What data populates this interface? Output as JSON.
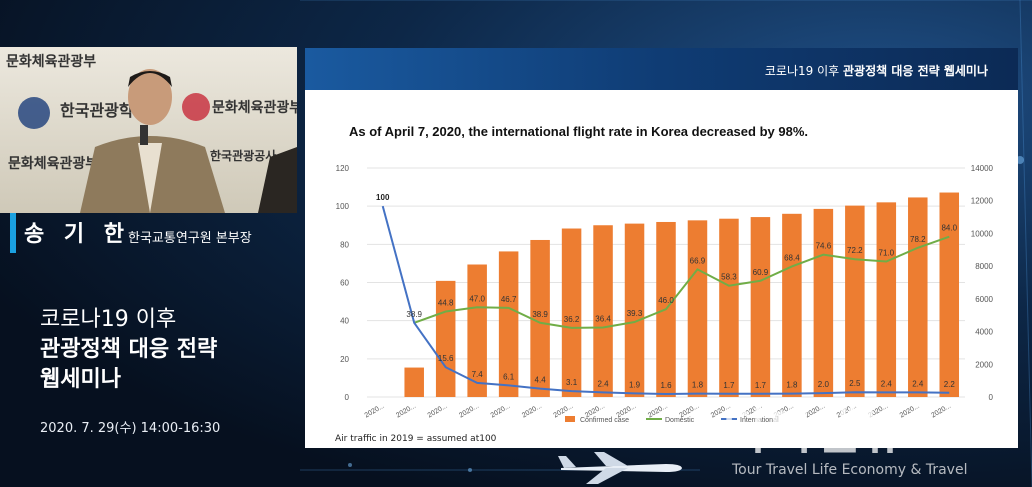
{
  "camera": {
    "banner_lines": [
      "문화체육관광부",
      "한국관광학회",
      "문화체육관광부",
      "문화체육관광부",
      "한국관광공사",
      "한국관광학회"
    ]
  },
  "speaker": {
    "name": "송 기 한",
    "org": "한국교통연구원 본부장"
  },
  "event": {
    "line1": "코로나19 이후",
    "line2": "관광정책 대응 전략",
    "line3": "웹세미나",
    "datetime": "2020. 7. 29(수) 14:00-16:30"
  },
  "slide": {
    "header_prefix": "코로나19 이후 ",
    "header_bold": "관광정책 대응 전략 웹세미나",
    "footnote": "Air traffic in 2019 = assumed at100"
  },
  "watermark": {
    "title": "티티엘뉴스",
    "subtitle": "Tour Travel Life Economy & Travel"
  },
  "chart_data": {
    "type": "bar",
    "title": "As of April 7, 2020, the international flight rate in Korea decreased by 98%.",
    "categories": [
      "2020...",
      "2020...",
      "2020...",
      "2020...",
      "2020...",
      "2020...",
      "2020...",
      "2020...",
      "2020...",
      "2020...",
      "2020...",
      "2020...",
      "2020...",
      "2020...",
      "2020...",
      "2020...",
      "2020...",
      "2020...",
      "2020..."
    ],
    "y_left": {
      "ticks": [
        0,
        20,
        40,
        60,
        80,
        100,
        120
      ],
      "lim": [
        0,
        120
      ]
    },
    "y_right": {
      "ticks": [
        0,
        2000,
        4000,
        6000,
        8000,
        10000,
        12000,
        14000
      ],
      "lim": [
        0,
        14000
      ]
    },
    "series": [
      {
        "name": "Confirmed case",
        "axis": "right",
        "kind": "bar",
        "color": "#ed7d31",
        "values": [
          null,
          1800,
          7100,
          8100,
          8900,
          9600,
          10300,
          10500,
          10600,
          10700,
          10800,
          10900,
          11000,
          11200,
          11500,
          11700,
          11900,
          12200,
          12500
        ]
      },
      {
        "name": "Domestic",
        "axis": "left",
        "kind": "line",
        "color": "#70ad47",
        "values": [
          null,
          38.9,
          44.8,
          47.0,
          46.7,
          38.9,
          36.2,
          36.4,
          39.3,
          46.0,
          66.9,
          58.3,
          60.9,
          68.4,
          74.6,
          72.2,
          71.0,
          78.2,
          84.0
        ]
      },
      {
        "name": "International",
        "axis": "left",
        "kind": "line",
        "color": "#4472c4",
        "values": [
          100,
          38.9,
          15.6,
          7.4,
          6.1,
          4.4,
          3.1,
          2.4,
          1.9,
          1.6,
          1.8,
          1.7,
          1.7,
          1.8,
          2.0,
          2.5,
          2.4,
          2.4,
          2.2
        ]
      }
    ],
    "data_labels": {
      "international_start": "100",
      "domestic": [
        "38.9",
        "44.8",
        "47.0",
        "46.7",
        "38.9",
        "36.2",
        "36.4",
        "39.3",
        "46.0",
        "66.9",
        "58.3",
        "60.9",
        "68.4",
        "74.6",
        "72.2",
        "71.0",
        "78.2",
        "84.0"
      ],
      "international": [
        "15.6",
        "7.4",
        "6.1",
        "4.4",
        "3.1",
        "2.4",
        "1.9",
        "1.6",
        "1.8",
        "1.7",
        "1.7",
        "1.8",
        "2.0",
        "2.5",
        "2.4",
        "2.4",
        "2.2"
      ]
    },
    "legend": {
      "placement": "bottom",
      "entries": [
        "Confirmed case",
        "Domestic",
        "International"
      ]
    }
  }
}
